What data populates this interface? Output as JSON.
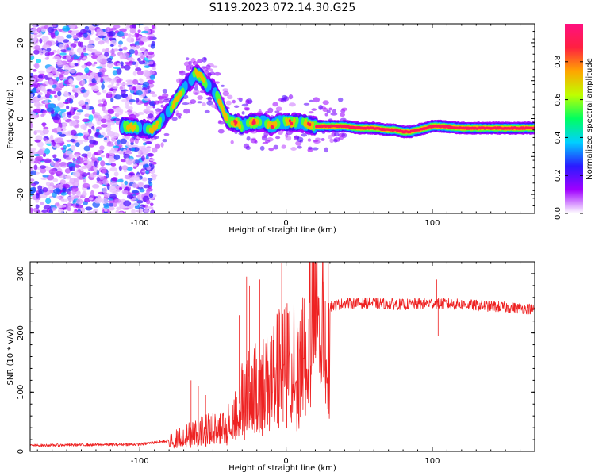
{
  "figure_title": "S119.2023.072.14.30.G25",
  "chart_data": [
    {
      "type": "heatmap",
      "xlabel": "Height of straight line (km)",
      "ylabel": "Frequency (Hz)",
      "xlim": [
        -175,
        170
      ],
      "ylim": [
        -25,
        25
      ],
      "x_ticks": [
        -100,
        0,
        100
      ],
      "x_tick_labels": [
        "-100",
        "0",
        "100"
      ],
      "y_ticks": [
        -20,
        -10,
        0,
        10,
        20
      ],
      "y_tick_labels": [
        "-20",
        "-10",
        "0",
        "10",
        "20"
      ],
      "colorbar": {
        "label": "Normalized spectral amplitude",
        "range": [
          0.0,
          1.0
        ],
        "ticks": [
          0.0,
          0.2,
          0.4,
          0.6,
          0.8
        ],
        "tick_labels": [
          "0.0",
          "0.2",
          "0.4",
          "0.6",
          "0.8"
        ],
        "colormap": [
          "#ffffff",
          "#a000ff",
          "#2a1bff",
          "#00d0ff",
          "#00ff60",
          "#bfff00",
          "#ffa500",
          "#ff2040",
          "#ff1080"
        ]
      },
      "ridge": {
        "x": [
          -112,
          -100,
          -92,
          -86,
          -80,
          -75,
          -70,
          -65,
          -62,
          -58,
          -55,
          -50,
          -46,
          -42,
          -38,
          -34,
          -30,
          -25,
          -20,
          -15,
          -10,
          -5,
          0,
          10,
          20,
          30,
          40,
          50,
          60,
          70,
          75,
          80,
          85,
          90,
          95,
          100,
          105,
          120,
          140,
          160,
          170
        ],
        "y": [
          -2,
          -2.5,
          -3,
          -1,
          2,
          5,
          8,
          10,
          12,
          11,
          9,
          8,
          5,
          1,
          -1,
          -1,
          -2,
          -1,
          -1,
          -1,
          -2,
          -1,
          -1,
          -1,
          -2,
          -2,
          -2,
          -2.5,
          -2.5,
          -3,
          -3,
          -3.5,
          -3.5,
          -3,
          -2.5,
          -2,
          -2,
          -2.5,
          -2.5,
          -2.5,
          -2.5
        ]
      },
      "noise_region_x": [
        -175,
        -90
      ]
    },
    {
      "type": "line",
      "xlabel": "Height of straight line (km)",
      "ylabel": "SNR (10 * v/v)",
      "xlim": [
        -175,
        170
      ],
      "ylim": [
        0,
        320
      ],
      "x_ticks": [
        -100,
        0,
        100
      ],
      "x_tick_labels": [
        "-100",
        "0",
        "100"
      ],
      "y_ticks": [
        0,
        100,
        200,
        300
      ],
      "y_tick_labels": [
        "0",
        "100",
        "200",
        "300"
      ],
      "color": "#ee2222",
      "envelope": {
        "x": [
          -175,
          -100,
          -80,
          -60,
          -50,
          -40,
          -30,
          -20,
          -10,
          0,
          10,
          20,
          30,
          40,
          60,
          80,
          100,
          120,
          140,
          170
        ],
        "y": [
          10,
          12,
          18,
          35,
          40,
          45,
          90,
          110,
          130,
          150,
          180,
          225,
          245,
          250,
          250,
          248,
          250,
          248,
          245,
          240
        ]
      },
      "spikes": [
        {
          "x": -65,
          "y": 120
        },
        {
          "x": -60,
          "y": 110
        },
        {
          "x": -55,
          "y": 95
        },
        {
          "x": -32,
          "y": 230
        },
        {
          "x": -27,
          "y": 295
        },
        {
          "x": -25,
          "y": 280
        },
        {
          "x": -18,
          "y": 290
        },
        {
          "x": -3,
          "y": 318
        },
        {
          "x": -2,
          "y": 50
        },
        {
          "x": 103,
          "y": 290
        },
        {
          "x": 104,
          "y": 195
        }
      ]
    }
  ]
}
